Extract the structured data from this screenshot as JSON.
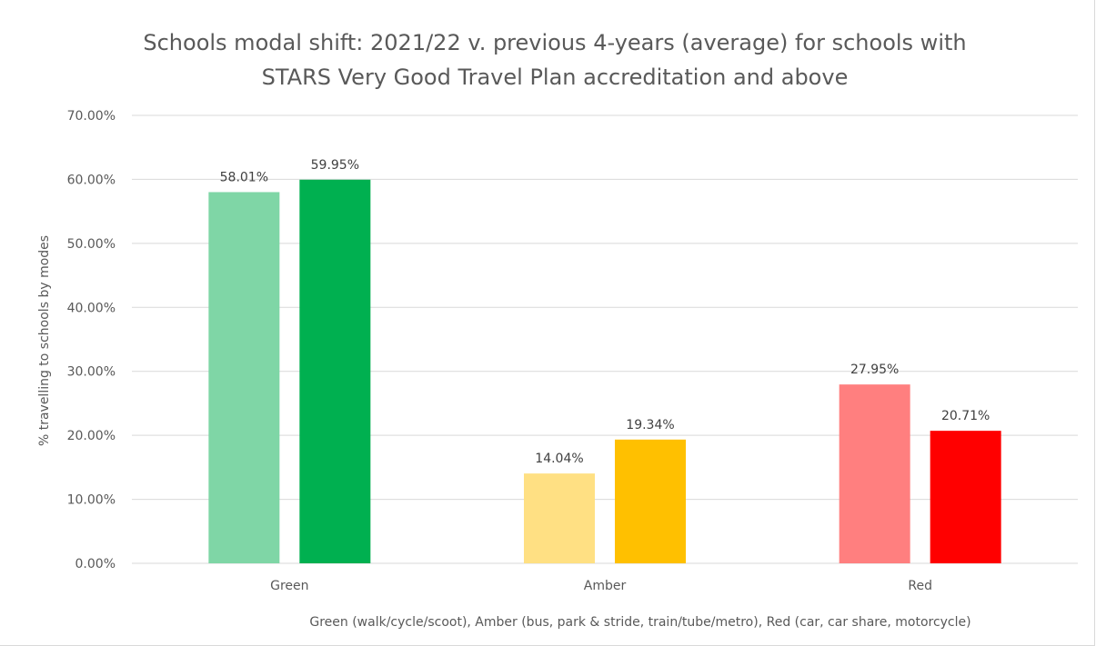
{
  "chart_data": {
    "type": "bar",
    "title": "Schools modal shift: 2021/22 v. previous 4-years (average) for schools with\nSTARS Very Good Travel Plan accreditation and above",
    "xlabel": "Green (walk/cycle/scoot), Amber (bus, park & stride, train/tube/metro), Red (car, car share, motorcycle)",
    "ylabel": "% travelling to schools by modes",
    "categories": [
      "Green",
      "Amber",
      "Red"
    ],
    "values": [
      [
        58.01,
        59.95
      ],
      [
        14.04,
        19.34
      ],
      [
        27.95,
        20.71
      ]
    ],
    "value_labels": [
      [
        "58.01%",
        "59.95%"
      ],
      [
        "14.04%",
        "19.34%"
      ],
      [
        "27.95%",
        "20.71%"
      ]
    ],
    "bar_colors": [
      [
        "#7fd6a6",
        "#00b050"
      ],
      [
        "#ffe083",
        "#ffc000"
      ],
      [
        "#ff7f7f",
        "#ff0000"
      ]
    ],
    "ylim": [
      0,
      70
    ],
    "yticks": [
      "0.00%",
      "10.00%",
      "20.00%",
      "30.00%",
      "40.00%",
      "50.00%",
      "60.00%",
      "70.00%"
    ],
    "grid": true,
    "legend": "none"
  }
}
